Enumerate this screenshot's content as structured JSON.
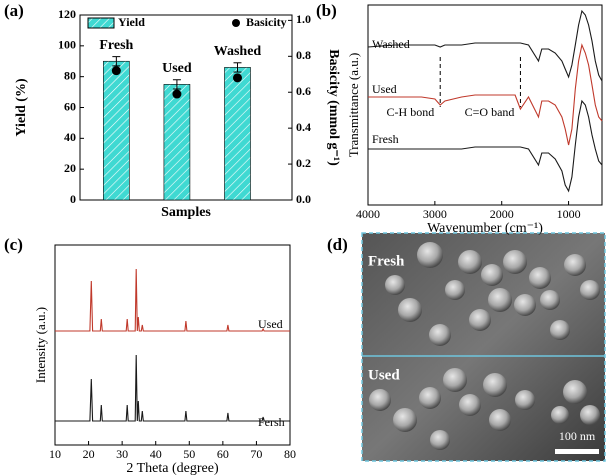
{
  "chart_data": [
    {
      "type": "bar",
      "panel_label": "(a)",
      "x_label": "Samples",
      "y_label": "Yield (%)",
      "y2_label": "Basicity (mmol g⁻¹)",
      "categories": [
        "Fresh",
        "Used",
        "Washed"
      ],
      "series": [
        {
          "name": "Yield",
          "type": "bar",
          "color": "#3fd9d2",
          "hatch": true,
          "values": [
            90,
            75,
            86
          ],
          "errors": [
            3,
            3,
            3
          ]
        },
        {
          "name": "Basicity",
          "type": "scatter",
          "axis": "y2",
          "color": "#000000",
          "values": [
            0.72,
            0.59,
            0.68
          ]
        }
      ],
      "ylim": [
        0,
        120
      ],
      "yticks": [
        0,
        20,
        40,
        60,
        80,
        100,
        120
      ],
      "y2lim": [
        0,
        1.03
      ],
      "y2ticks": [
        {
          "value": 0,
          "label": "0.0"
        },
        {
          "value": 0.2,
          "label": "0.2"
        },
        {
          "value": 0.4,
          "label": "0.4"
        },
        {
          "value": 0.6,
          "label": "0.6"
        },
        {
          "value": 0.8,
          "label": "0.8"
        },
        {
          "value": 1.0,
          "label": "1.0"
        }
      ]
    },
    {
      "type": "line",
      "panel_label": "(b)",
      "x_label": "Wavenumber (cm⁻¹)",
      "y_label": "Transmittance (a.u.)",
      "x": [
        4000,
        3600,
        3200,
        3000,
        2920,
        2850,
        2600,
        2400,
        2200,
        2000,
        1800,
        1720,
        1600,
        1450,
        1400,
        1300,
        1200,
        1100,
        1050,
        1000,
        950,
        900,
        850,
        800,
        750,
        700,
        650,
        600,
        550,
        500
      ],
      "series": [
        {
          "name": "Washed",
          "color": "#1a1a1a",
          "values": [
            79,
            80,
            80,
            80,
            79,
            80,
            80,
            81,
            81,
            81,
            81,
            81,
            80,
            72,
            78,
            78,
            76,
            72,
            68,
            64,
            70,
            80,
            90,
            97,
            95,
            90,
            82,
            72,
            65,
            62
          ]
        },
        {
          "name": "Used",
          "color": "#c0392b",
          "values": [
            54,
            54,
            54,
            53,
            50,
            52,
            54,
            55,
            55,
            55,
            55,
            48,
            54,
            44,
            52,
            52,
            50,
            44,
            38,
            30,
            38,
            58,
            72,
            80,
            76,
            70,
            60,
            50,
            44,
            42
          ]
        },
        {
          "name": "Fresh",
          "color": "#1a1a1a",
          "values": [
            28,
            28,
            28,
            28,
            28,
            28,
            28,
            29,
            29,
            29,
            29,
            29,
            28,
            20,
            26,
            26,
            23,
            17,
            10,
            7,
            14,
            30,
            44,
            52,
            50,
            44,
            35,
            28,
            22,
            20
          ]
        }
      ],
      "annotations": [
        {
          "text": "C-H bond",
          "x": 2920
        },
        {
          "text": "C=O band",
          "x": 1720
        }
      ],
      "xlim": [
        4000,
        500
      ],
      "xticks": [
        4000,
        3000,
        2000,
        1000
      ],
      "ylim": [
        0,
        100
      ]
    },
    {
      "type": "line",
      "panel_label": "(c)",
      "x_label": "2 Theta (degree)",
      "y_label": "Intensity (a.u.)",
      "x": [
        10,
        15,
        20.4,
        20.8,
        21.2,
        23.5,
        23.8,
        24.1,
        31.2,
        31.5,
        31.8,
        33.9,
        34.2,
        34.5,
        34.8,
        35.1,
        35.7,
        36.0,
        36.3,
        48.7,
        49.0,
        49.3,
        61.2,
        61.5,
        61.8,
        71.7,
        72.0,
        72.3,
        80
      ],
      "series": [
        {
          "name": "Used",
          "color": "#c0392b",
          "values": [
            57,
            57,
            57,
            82,
            57,
            57,
            63,
            57,
            57,
            63,
            57,
            57,
            88,
            57,
            64,
            57,
            57,
            60,
            57,
            57,
            62,
            57,
            57,
            60,
            57,
            57,
            58,
            57,
            57
          ]
        },
        {
          "name": "Fersh",
          "color": "#1a1a1a",
          "values": [
            12,
            12,
            12,
            33,
            12,
            12,
            20,
            12,
            12,
            20,
            12,
            12,
            45,
            12,
            22,
            12,
            12,
            17,
            12,
            12,
            17,
            12,
            12,
            16,
            12,
            12,
            14,
            12,
            12
          ]
        }
      ],
      "xlim": [
        10,
        80
      ],
      "xticks": [
        10,
        20,
        30,
        40,
        50,
        60,
        70,
        80
      ],
      "ylim": [
        0,
        100
      ]
    }
  ],
  "sem_panel": {
    "panel_label": "(d)",
    "top_label": "Fresh",
    "bottom_label": "Used",
    "scale_bar": "100 nm"
  }
}
